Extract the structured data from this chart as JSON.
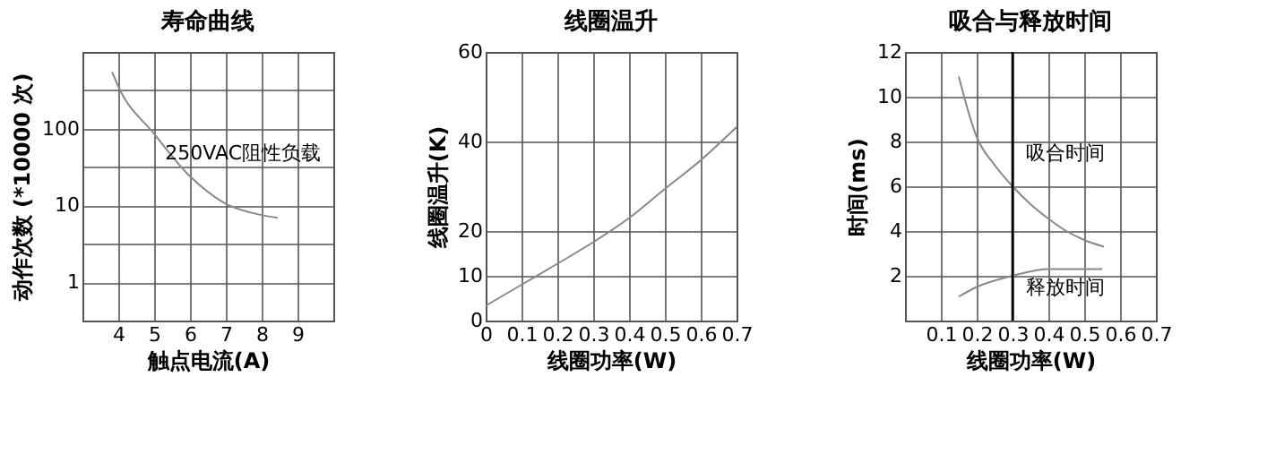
{
  "chart_data": [
    {
      "type": "line",
      "title": "寿命曲线",
      "xlabel": "触点电流(A)",
      "ylabel": "动作次数 (*10000 次)",
      "log": "y",
      "grid": true,
      "xlim": [
        3,
        10
      ],
      "xticks": [
        4,
        5,
        6,
        7,
        8,
        9
      ],
      "ylim": [
        0.3162,
        1000
      ],
      "yticks": [
        {
          "value": 0.3162,
          "label": null
        },
        1,
        {
          "value": 3.162,
          "label": null
        },
        10,
        {
          "value": 31.62,
          "label": null
        },
        100,
        {
          "value": 316.2,
          "label": null
        },
        {
          "value": 1000,
          "label": null
        }
      ],
      "series": [
        {
          "color": "#888888",
          "x": [
            3.83,
            4,
            5,
            6,
            7,
            8,
            8.45
          ],
          "values": [
            550,
            357,
            86,
            24,
            10.5,
            7.5,
            6.9
          ]
        }
      ],
      "annotations": [
        "250VAC阻性负载"
      ]
    },
    {
      "type": "line",
      "title": "线圈温升",
      "xlabel": "线圈功率(W)",
      "ylabel": "线圈温升(K)",
      "grid": true,
      "xlim": [
        0,
        0.7
      ],
      "xticks": [
        0,
        0.1,
        0.2,
        0.3,
        0.4,
        0.5,
        0.6,
        0.7
      ],
      "ylim": [
        0,
        60
      ],
      "yticks": [
        0,
        10,
        20,
        40,
        60
      ],
      "series": [
        {
          "color": "#888888",
          "x": [
            0,
            0.1,
            0.2,
            0.3,
            0.4,
            0.5,
            0.6,
            0.7
          ],
          "values": [
            3.3,
            8.0,
            12.7,
            17.5,
            22.9,
            29.4,
            35.8,
            43.2
          ]
        }
      ]
    },
    {
      "type": "line",
      "title": "吸合与释放时间",
      "xlabel": "线圈功率(W)",
      "ylabel": "时间(ms)",
      "grid": true,
      "xlim": [
        0,
        0.7
      ],
      "xticks": [
        0.1,
        0.2,
        0.3,
        0.4,
        0.5,
        0.6,
        0.7
      ],
      "ylim": [
        0,
        12
      ],
      "yticks": [
        2,
        4,
        6,
        8,
        10,
        12
      ],
      "series": [
        {
          "color": "#888888",
          "x": [
            0.15,
            0.2,
            0.25,
            0.3,
            0.35,
            0.4,
            0.45,
            0.5,
            0.555
          ],
          "values": [
            10.9,
            8.2,
            6.95,
            6.0,
            5.2,
            4.55,
            4.0,
            3.6,
            3.3
          ]
        },
        {
          "color": "#888888",
          "x": [
            0.15,
            0.2,
            0.3,
            0.4,
            0.55
          ],
          "values": [
            1.07,
            1.5,
            2.0,
            2.3,
            2.3
          ]
        }
      ],
      "ref_lines": [
        {
          "axis": "x",
          "value": 0.3,
          "label": null,
          "color": "#000000"
        }
      ],
      "annotations": [
        "吸合时间",
        "释放时间"
      ]
    }
  ]
}
